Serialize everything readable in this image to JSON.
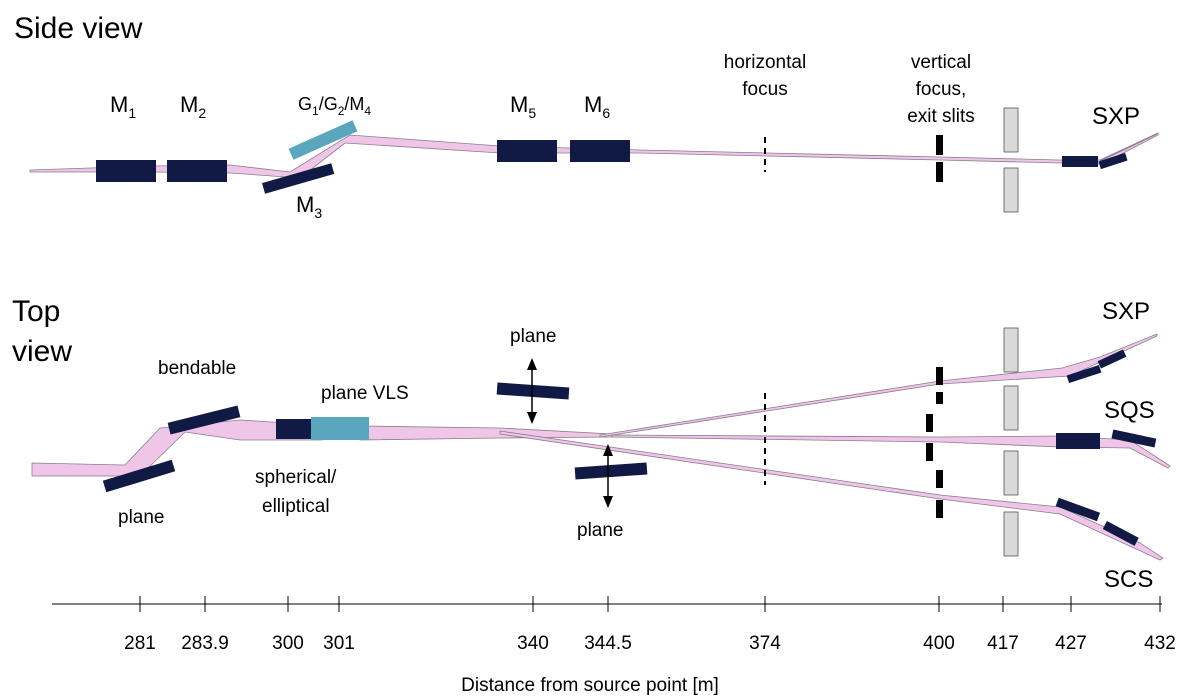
{
  "colors": {
    "beam": "#efc6e8",
    "beam_edge": "#8a7d8e",
    "optic": "#101a45",
    "grating": "#5aa6bf",
    "slit": "#000000",
    "aperture": "#d9d9d9"
  },
  "side_view": {
    "title": "Side view",
    "labels": {
      "m1": {
        "main": "M",
        "sub": "1"
      },
      "m2": {
        "main": "M",
        "sub": "2"
      },
      "m3": {
        "main": "M",
        "sub": "3"
      },
      "m5": {
        "main": "M",
        "sub": "5"
      },
      "m6": {
        "main": "M",
        "sub": "6"
      },
      "g1": {
        "main": "G",
        "sub": "1"
      },
      "g2": {
        "main": "/G",
        "sub": "2"
      },
      "m4": {
        "main": "/M",
        "sub": "4"
      },
      "horizontal_focus_1": "horizontal",
      "horizontal_focus_2": "focus",
      "vertical_focus_1": "vertical",
      "vertical_focus_2": "focus,",
      "vertical_focus_3": "exit slits",
      "sxp": "SXP"
    }
  },
  "top_view": {
    "title_1": "Top",
    "title_2": "view",
    "labels": {
      "bendable": "bendable",
      "plane_lower_left": "plane",
      "plane_vls": "plane VLS",
      "spherical": "spherical/",
      "elliptical": "elliptical",
      "plane_upper": "plane",
      "plane_lower": "plane",
      "sxp": "SXP",
      "sqs": "SQS",
      "scs": "SCS"
    }
  },
  "axis": {
    "label": "Distance from source point [m]",
    "ticks": [
      "281",
      "283.9",
      "300",
      "301",
      "340",
      "344.5",
      "374",
      "400",
      "417",
      "427",
      "432"
    ]
  }
}
